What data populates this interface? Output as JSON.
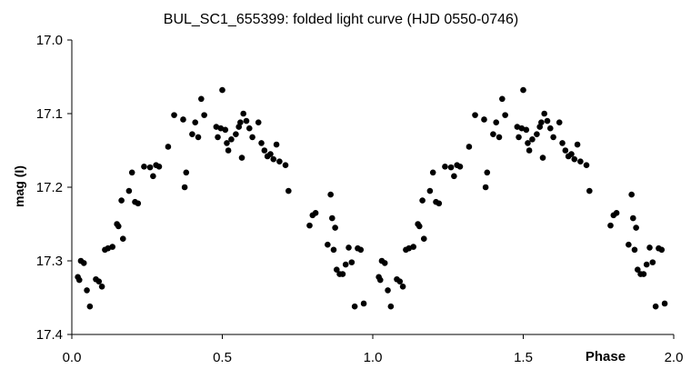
{
  "chart_data": {
    "type": "scatter",
    "title": "BUL_SC1_655399: folded light curve (HJD 0550-0746)",
    "xlabel": "Phase",
    "ylabel": "mag (I)",
    "xlim": [
      0.0,
      2.0
    ],
    "ylim": [
      17.4,
      17.0
    ],
    "y_inverted": true,
    "x_ticks": [
      "0.0",
      "0.5",
      "1.0",
      "1.5",
      "2.0"
    ],
    "y_ticks": [
      "17.0",
      "17.1",
      "17.2",
      "17.3",
      "17.4"
    ],
    "grid": false,
    "legend": "none",
    "marker_color": "#000000",
    "series": [
      {
        "points": [
          [
            0.02,
            17.322
          ],
          [
            0.025,
            17.326
          ],
          [
            0.03,
            17.3
          ],
          [
            0.04,
            17.303
          ],
          [
            0.05,
            17.34
          ],
          [
            0.06,
            17.362
          ],
          [
            0.08,
            17.325
          ],
          [
            0.09,
            17.328
          ],
          [
            0.1,
            17.335
          ],
          [
            0.11,
            17.285
          ],
          [
            0.12,
            17.283
          ],
          [
            0.135,
            17.281
          ],
          [
            0.15,
            17.25
          ],
          [
            0.155,
            17.253
          ],
          [
            0.165,
            17.218
          ],
          [
            0.17,
            17.27
          ],
          [
            0.19,
            17.205
          ],
          [
            0.2,
            17.18
          ],
          [
            0.21,
            17.22
          ],
          [
            0.22,
            17.222
          ],
          [
            0.24,
            17.172
          ],
          [
            0.26,
            17.173
          ],
          [
            0.27,
            17.185
          ],
          [
            0.28,
            17.17
          ],
          [
            0.29,
            17.172
          ],
          [
            0.32,
            17.145
          ],
          [
            0.34,
            17.102
          ],
          [
            0.37,
            17.108
          ],
          [
            0.375,
            17.2
          ],
          [
            0.38,
            17.18
          ],
          [
            0.4,
            17.128
          ],
          [
            0.41,
            17.112
          ],
          [
            0.42,
            17.132
          ],
          [
            0.43,
            17.08
          ],
          [
            0.44,
            17.102
          ],
          [
            0.48,
            17.118
          ],
          [
            0.485,
            17.132
          ],
          [
            0.495,
            17.12
          ],
          [
            0.5,
            17.068
          ],
          [
            0.51,
            17.122
          ],
          [
            0.515,
            17.14
          ],
          [
            0.52,
            17.15
          ],
          [
            0.53,
            17.135
          ],
          [
            0.545,
            17.128
          ],
          [
            0.555,
            17.118
          ],
          [
            0.56,
            17.112
          ],
          [
            0.565,
            17.16
          ],
          [
            0.57,
            17.1
          ],
          [
            0.58,
            17.11
          ],
          [
            0.59,
            17.12
          ],
          [
            0.6,
            17.132
          ],
          [
            0.62,
            17.112
          ],
          [
            0.63,
            17.14
          ],
          [
            0.64,
            17.15
          ],
          [
            0.65,
            17.158
          ],
          [
            0.66,
            17.155
          ],
          [
            0.67,
            17.162
          ],
          [
            0.68,
            17.142
          ],
          [
            0.69,
            17.165
          ],
          [
            0.71,
            17.17
          ],
          [
            0.72,
            17.205
          ],
          [
            0.79,
            17.252
          ],
          [
            0.8,
            17.238
          ],
          [
            0.81,
            17.235
          ],
          [
            0.85,
            17.278
          ],
          [
            0.86,
            17.21
          ],
          [
            0.865,
            17.242
          ],
          [
            0.87,
            17.285
          ],
          [
            0.875,
            17.255
          ],
          [
            0.88,
            17.312
          ],
          [
            0.89,
            17.318
          ],
          [
            0.9,
            17.318
          ],
          [
            0.91,
            17.305
          ],
          [
            0.92,
            17.282
          ],
          [
            0.93,
            17.302
          ],
          [
            0.94,
            17.362
          ],
          [
            0.95,
            17.283
          ],
          [
            0.96,
            17.285
          ],
          [
            0.97,
            17.358
          ]
        ]
      },
      {
        "points": [
          [
            1.02,
            17.322
          ],
          [
            1.025,
            17.326
          ],
          [
            1.03,
            17.3
          ],
          [
            1.04,
            17.303
          ],
          [
            1.05,
            17.34
          ],
          [
            1.06,
            17.362
          ],
          [
            1.08,
            17.325
          ],
          [
            1.09,
            17.328
          ],
          [
            1.1,
            17.335
          ],
          [
            1.11,
            17.285
          ],
          [
            1.12,
            17.283
          ],
          [
            1.135,
            17.281
          ],
          [
            1.15,
            17.25
          ],
          [
            1.155,
            17.253
          ],
          [
            1.165,
            17.218
          ],
          [
            1.17,
            17.27
          ],
          [
            1.19,
            17.205
          ],
          [
            1.2,
            17.18
          ],
          [
            1.21,
            17.22
          ],
          [
            1.22,
            17.222
          ],
          [
            1.24,
            17.172
          ],
          [
            1.26,
            17.173
          ],
          [
            1.27,
            17.185
          ],
          [
            1.28,
            17.17
          ],
          [
            1.29,
            17.172
          ],
          [
            1.32,
            17.145
          ],
          [
            1.34,
            17.102
          ],
          [
            1.37,
            17.108
          ],
          [
            1.375,
            17.2
          ],
          [
            1.38,
            17.18
          ],
          [
            1.4,
            17.128
          ],
          [
            1.41,
            17.112
          ],
          [
            1.42,
            17.132
          ],
          [
            1.43,
            17.08
          ],
          [
            1.44,
            17.102
          ],
          [
            1.48,
            17.118
          ],
          [
            1.485,
            17.132
          ],
          [
            1.495,
            17.12
          ],
          [
            1.5,
            17.068
          ],
          [
            1.51,
            17.122
          ],
          [
            1.515,
            17.14
          ],
          [
            1.52,
            17.15
          ],
          [
            1.53,
            17.135
          ],
          [
            1.545,
            17.128
          ],
          [
            1.555,
            17.118
          ],
          [
            1.56,
            17.112
          ],
          [
            1.565,
            17.16
          ],
          [
            1.57,
            17.1
          ],
          [
            1.58,
            17.11
          ],
          [
            1.59,
            17.12
          ],
          [
            1.6,
            17.132
          ],
          [
            1.62,
            17.112
          ],
          [
            1.63,
            17.14
          ],
          [
            1.64,
            17.15
          ],
          [
            1.65,
            17.158
          ],
          [
            1.66,
            17.155
          ],
          [
            1.67,
            17.162
          ],
          [
            1.68,
            17.142
          ],
          [
            1.69,
            17.165
          ],
          [
            1.71,
            17.17
          ],
          [
            1.72,
            17.205
          ],
          [
            1.79,
            17.252
          ],
          [
            1.8,
            17.238
          ],
          [
            1.81,
            17.235
          ],
          [
            1.85,
            17.278
          ],
          [
            1.86,
            17.21
          ],
          [
            1.865,
            17.242
          ],
          [
            1.87,
            17.285
          ],
          [
            1.875,
            17.255
          ],
          [
            1.88,
            17.312
          ],
          [
            1.89,
            17.318
          ],
          [
            1.9,
            17.318
          ],
          [
            1.91,
            17.305
          ],
          [
            1.92,
            17.282
          ],
          [
            1.93,
            17.302
          ],
          [
            1.94,
            17.362
          ],
          [
            1.95,
            17.283
          ],
          [
            1.96,
            17.285
          ],
          [
            1.97,
            17.358
          ]
        ]
      }
    ]
  }
}
